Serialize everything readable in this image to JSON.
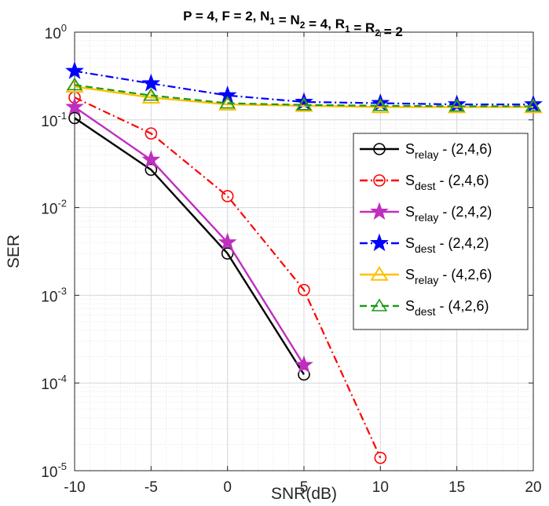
{
  "chart_data": {
    "type": "line",
    "title": {
      "prefix": "P = 4, F = 2, N",
      "parts": [
        {
          "t": "P = 4, F = 2, N"
        },
        {
          "t": "1",
          "sub": true
        },
        {
          "t": " = N"
        },
        {
          "t": "2",
          "sub": true
        },
        {
          "t": " = 4, R"
        },
        {
          "t": "1",
          "sub": true
        },
        {
          "t": " = R"
        },
        {
          "t": "2",
          "sub": true
        },
        {
          "t": " = 2"
        }
      ]
    },
    "xlabel": "SNR(dB)",
    "ylabel": "SER",
    "x_ticks": [
      "-10",
      "-5",
      "0",
      "5",
      "10",
      "15",
      "20"
    ],
    "xlim": [
      -10,
      20
    ],
    "yscale": "log",
    "ylim": [
      1e-05,
      1
    ],
    "y_ticks": [
      {
        "base": "10",
        "exp": "0"
      },
      {
        "base": "10",
        "exp": "-1"
      },
      {
        "base": "10",
        "exp": "-2"
      },
      {
        "base": "10",
        "exp": "-3"
      },
      {
        "base": "10",
        "exp": "-4"
      },
      {
        "base": "10",
        "exp": "-5"
      }
    ],
    "grid": true,
    "legend_position": "right",
    "series": [
      {
        "name": "S_relay - (2,4,6)",
        "label_main": "S",
        "label_sub": "relay",
        "label_rest": " - (2,4,6)",
        "color": "#000000",
        "linestyle": "solid",
        "marker": "circle",
        "x": [
          -10,
          -5,
          0,
          5
        ],
        "y": [
          0.105,
          0.027,
          0.003,
          0.000125
        ]
      },
      {
        "name": "S_dest - (2,4,6)",
        "label_main": "S",
        "label_sub": "dest",
        "label_rest": " - (2,4,6)",
        "color": "#ff0000",
        "linestyle": "dashdot",
        "marker": "circle",
        "x": [
          -10,
          -5,
          0,
          5,
          10
        ],
        "y": [
          0.18,
          0.07,
          0.0135,
          0.00115,
          1.4e-05
        ]
      },
      {
        "name": "S_relay - (2,4,2)",
        "label_main": "S",
        "label_sub": "relay",
        "label_rest": " - (2,4,2)",
        "color": "#bf2fbf",
        "linestyle": "solid",
        "marker": "star",
        "x": [
          -10,
          -5,
          0,
          5
        ],
        "y": [
          0.14,
          0.035,
          0.004,
          0.00016
        ]
      },
      {
        "name": "S_dest - (2,4,2)",
        "label_main": "S",
        "label_sub": "dest",
        "label_rest": " - (2,4,2)",
        "color": "#0000ff",
        "linestyle": "dashdot",
        "marker": "star",
        "x": [
          -10,
          -5,
          0,
          5,
          10,
          15,
          20
        ],
        "y": [
          0.36,
          0.26,
          0.19,
          0.16,
          0.155,
          0.15,
          0.15
        ]
      },
      {
        "name": "S_relay - (4,2,6)",
        "label_main": "S",
        "label_sub": "relay",
        "label_rest": " - (4,2,6)",
        "color": "#ffc000",
        "linestyle": "solid",
        "marker": "triangle",
        "x": [
          -10,
          -5,
          0,
          5,
          10,
          15,
          20
        ],
        "y": [
          0.24,
          0.18,
          0.15,
          0.145,
          0.14,
          0.14,
          0.14
        ]
      },
      {
        "name": "S_dest - (4,2,6)",
        "label_main": "S",
        "label_sub": "dest",
        "label_rest": " - (4,2,6)",
        "color": "#1a9a1a",
        "linestyle": "dashed",
        "marker": "triangle-open",
        "x": [
          -10,
          -5,
          0,
          5,
          10,
          15,
          20
        ],
        "y": [
          0.25,
          0.19,
          0.155,
          0.148,
          0.145,
          0.143,
          0.143
        ]
      }
    ]
  }
}
